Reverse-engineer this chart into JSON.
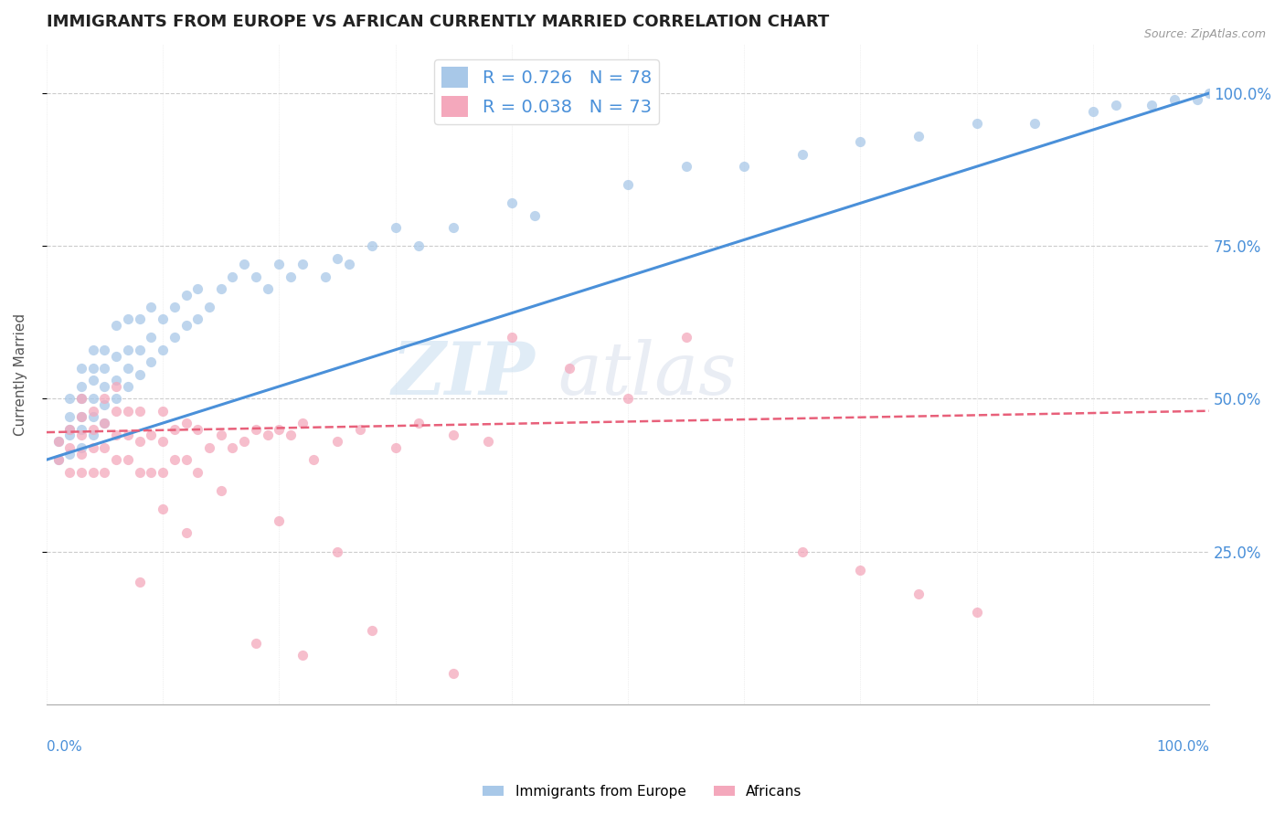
{
  "title": "IMMIGRANTS FROM EUROPE VS AFRICAN CURRENTLY MARRIED CORRELATION CHART",
  "source": "Source: ZipAtlas.com",
  "ylabel": "Currently Married",
  "legend_label1": "Immigrants from Europe",
  "legend_label2": "Africans",
  "R1": 0.726,
  "N1": 78,
  "R2": 0.038,
  "N2": 73,
  "color1": "#a8c8e8",
  "color2": "#f4a8bc",
  "line_color1": "#4a90d9",
  "line_color2": "#e8607a",
  "watermark_zip": "ZIP",
  "watermark_atlas": "atlas",
  "xlim": [
    0.0,
    1.0
  ],
  "ylim": [
    0.0,
    1.08
  ],
  "blue_x": [
    0.01,
    0.01,
    0.02,
    0.02,
    0.02,
    0.02,
    0.02,
    0.03,
    0.03,
    0.03,
    0.03,
    0.03,
    0.03,
    0.04,
    0.04,
    0.04,
    0.04,
    0.04,
    0.04,
    0.05,
    0.05,
    0.05,
    0.05,
    0.05,
    0.06,
    0.06,
    0.06,
    0.06,
    0.07,
    0.07,
    0.07,
    0.07,
    0.08,
    0.08,
    0.08,
    0.09,
    0.09,
    0.09,
    0.1,
    0.1,
    0.11,
    0.11,
    0.12,
    0.12,
    0.13,
    0.13,
    0.14,
    0.15,
    0.16,
    0.17,
    0.18,
    0.19,
    0.2,
    0.21,
    0.22,
    0.24,
    0.25,
    0.26,
    0.28,
    0.3,
    0.32,
    0.35,
    0.4,
    0.42,
    0.5,
    0.55,
    0.6,
    0.65,
    0.7,
    0.75,
    0.8,
    0.85,
    0.9,
    0.92,
    0.95,
    0.97,
    0.99,
    1.0
  ],
  "blue_y": [
    0.4,
    0.43,
    0.41,
    0.44,
    0.45,
    0.47,
    0.5,
    0.42,
    0.45,
    0.47,
    0.5,
    0.52,
    0.55,
    0.44,
    0.47,
    0.5,
    0.53,
    0.55,
    0.58,
    0.46,
    0.49,
    0.52,
    0.55,
    0.58,
    0.5,
    0.53,
    0.57,
    0.62,
    0.52,
    0.55,
    0.58,
    0.63,
    0.54,
    0.58,
    0.63,
    0.56,
    0.6,
    0.65,
    0.58,
    0.63,
    0.6,
    0.65,
    0.62,
    0.67,
    0.63,
    0.68,
    0.65,
    0.68,
    0.7,
    0.72,
    0.7,
    0.68,
    0.72,
    0.7,
    0.72,
    0.7,
    0.73,
    0.72,
    0.75,
    0.78,
    0.75,
    0.78,
    0.82,
    0.8,
    0.85,
    0.88,
    0.88,
    0.9,
    0.92,
    0.93,
    0.95,
    0.95,
    0.97,
    0.98,
    0.98,
    0.99,
    0.99,
    1.0
  ],
  "pink_x": [
    0.01,
    0.01,
    0.02,
    0.02,
    0.02,
    0.03,
    0.03,
    0.03,
    0.03,
    0.03,
    0.04,
    0.04,
    0.04,
    0.04,
    0.05,
    0.05,
    0.05,
    0.05,
    0.06,
    0.06,
    0.06,
    0.06,
    0.07,
    0.07,
    0.07,
    0.08,
    0.08,
    0.08,
    0.09,
    0.09,
    0.1,
    0.1,
    0.1,
    0.11,
    0.11,
    0.12,
    0.12,
    0.13,
    0.13,
    0.14,
    0.15,
    0.16,
    0.17,
    0.18,
    0.19,
    0.2,
    0.21,
    0.22,
    0.23,
    0.25,
    0.27,
    0.3,
    0.32,
    0.35,
    0.38,
    0.4,
    0.45,
    0.5,
    0.55,
    0.65,
    0.7,
    0.75,
    0.8,
    0.15,
    0.2,
    0.25,
    0.1,
    0.12,
    0.08,
    0.18,
    0.22,
    0.28,
    0.35
  ],
  "pink_y": [
    0.4,
    0.43,
    0.38,
    0.42,
    0.45,
    0.38,
    0.41,
    0.44,
    0.47,
    0.5,
    0.38,
    0.42,
    0.45,
    0.48,
    0.38,
    0.42,
    0.46,
    0.5,
    0.4,
    0.44,
    0.48,
    0.52,
    0.4,
    0.44,
    0.48,
    0.38,
    0.43,
    0.48,
    0.38,
    0.44,
    0.38,
    0.43,
    0.48,
    0.4,
    0.45,
    0.4,
    0.46,
    0.38,
    0.45,
    0.42,
    0.44,
    0.42,
    0.43,
    0.45,
    0.44,
    0.45,
    0.44,
    0.46,
    0.4,
    0.43,
    0.45,
    0.42,
    0.46,
    0.44,
    0.43,
    0.6,
    0.55,
    0.5,
    0.6,
    0.25,
    0.22,
    0.18,
    0.15,
    0.35,
    0.3,
    0.25,
    0.32,
    0.28,
    0.2,
    0.1,
    0.08,
    0.12,
    0.05
  ]
}
